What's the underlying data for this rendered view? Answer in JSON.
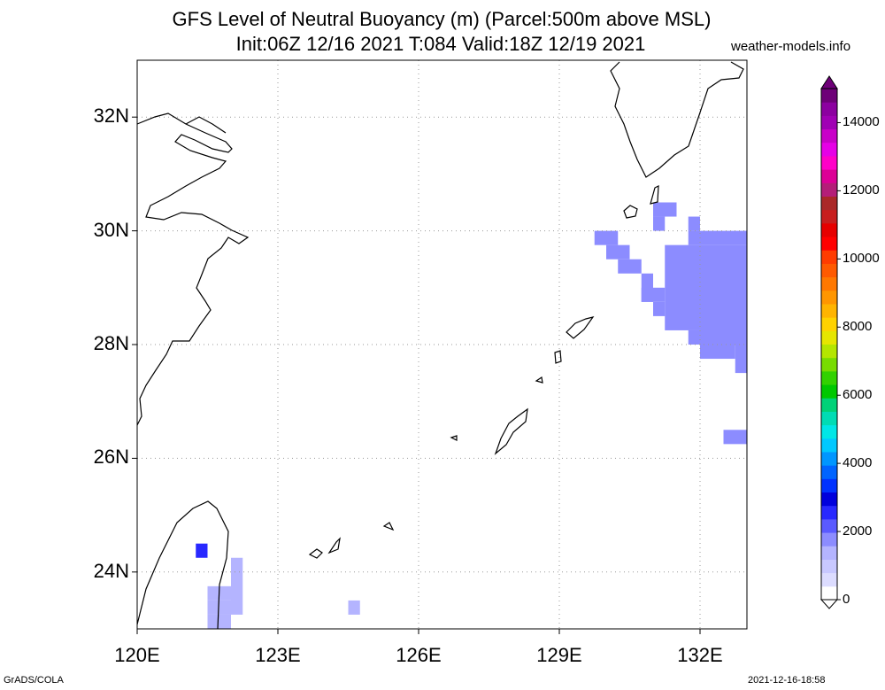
{
  "header": {
    "title_line1": "GFS Level of Neutral Buoyancy (m) (Parcel:500m above MSL)",
    "title_line2": "Init:06Z 12/16 2021 T:084 Valid:18Z 12/19 2021",
    "site": "weather-models.info"
  },
  "axes": {
    "lat_labels": [
      "32N",
      "30N",
      "28N",
      "26N",
      "24N"
    ],
    "lon_labels": [
      "120E",
      "123E",
      "126E",
      "129E",
      "132E"
    ],
    "lat_values": [
      32,
      30,
      28,
      26,
      24
    ],
    "lon_values": [
      120,
      123,
      126,
      129,
      132
    ],
    "lat_range": [
      23.0,
      33.0
    ],
    "lon_range": [
      120.0,
      133.0
    ],
    "grid": "dotted"
  },
  "colorbar": {
    "labels": [
      "14000",
      "12000",
      "10000",
      "8000",
      "6000",
      "4000",
      "2000",
      "0"
    ],
    "min": 0,
    "max": 15000,
    "colors": [
      "#ffffff",
      "#dcdcff",
      "#c8c8ff",
      "#b4b4ff",
      "#8c8cff",
      "#5a5aff",
      "#2828ff",
      "#0000dc",
      "#0032ff",
      "#0064ff",
      "#0096ff",
      "#00c8ff",
      "#00e6e6",
      "#00dcb4",
      "#00d278",
      "#00c800",
      "#32d200",
      "#78dc00",
      "#b4e600",
      "#e6e600",
      "#ffd200",
      "#ffb400",
      "#ff9600",
      "#ff7800",
      "#ff5a00",
      "#ff3c00",
      "#ff0000",
      "#e60000",
      "#c81e1e",
      "#aa2828",
      "#b41e78",
      "#dc0096",
      "#ff00c8",
      "#e600e6",
      "#c800c8",
      "#a000b4",
      "#8c00a0",
      "#6e0078"
    ]
  },
  "footer": {
    "left": "GrADS/COLA",
    "right": "2021-12-16-18:58"
  },
  "chart_data": {
    "type": "heatmap",
    "variable": "Level of Neutral Buoyancy (m)",
    "cells": [
      {
        "lon": 129.9,
        "lat": 29.9,
        "value": 1900
      },
      {
        "lon": 130.1,
        "lat": 29.6,
        "value": 1900
      },
      {
        "lon": 130.4,
        "lat": 29.4,
        "value": 1900
      },
      {
        "lon": 131.0,
        "lat": 30.3,
        "value": 1900
      },
      {
        "lon": 131.3,
        "lat": 29.0,
        "value": 1900
      },
      {
        "lon": 131.8,
        "lat": 29.3,
        "value": 1900
      },
      {
        "lon": 132.3,
        "lat": 29.0,
        "value": 1900
      },
      {
        "lon": 132.6,
        "lat": 28.2,
        "value": 1900
      },
      {
        "lon": 132.8,
        "lat": 26.4,
        "value": 1900
      },
      {
        "lon": 121.4,
        "lat": 24.4,
        "value": 2600
      },
      {
        "lon": 121.9,
        "lat": 23.4,
        "value": 1400
      },
      {
        "lon": 124.6,
        "lat": 23.3,
        "value": 1400
      }
    ]
  }
}
